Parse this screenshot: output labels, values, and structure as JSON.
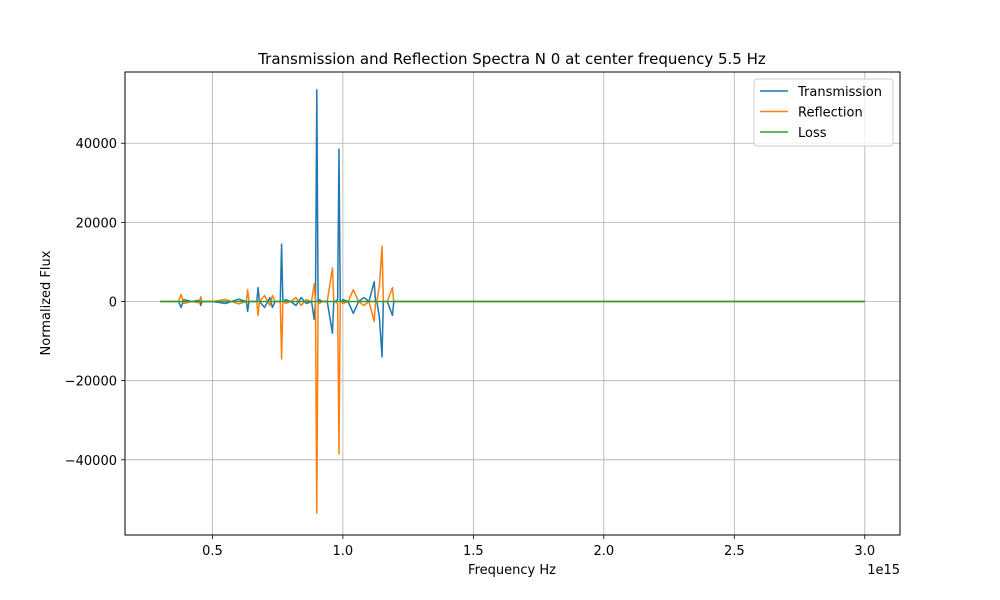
{
  "chart_data": {
    "type": "line",
    "title": "Transmission and Reflection Spectra N 0 at center frequency 5.5 Hz",
    "xlabel": "Frequency Hz",
    "ylabel": "Normalized Flux",
    "x_offset_label": "1e15",
    "x_scale": 1000000000000000.0,
    "xlim": [
      0.165,
      3.135
    ],
    "ylim": [
      -59000,
      58000
    ],
    "xticks": [
      0.5,
      1.0,
      1.5,
      2.0,
      2.5,
      3.0
    ],
    "xtick_labels": [
      "0.5",
      "1.0",
      "1.5",
      "2.0",
      "2.5",
      "3.0"
    ],
    "yticks": [
      -40000,
      -20000,
      0,
      20000,
      40000
    ],
    "ytick_labels": [
      "−40000",
      "−20000",
      "0",
      "20000",
      "40000"
    ],
    "grid": true,
    "legend_position": "top-right",
    "series": [
      {
        "name": "Transmission",
        "color": "#1f77b4",
        "x": [
          0.3,
          0.34,
          0.37,
          0.38,
          0.39,
          0.42,
          0.45,
          0.455,
          0.46,
          0.5,
          0.55,
          0.6,
          0.63,
          0.635,
          0.64,
          0.67,
          0.675,
          0.68,
          0.7,
          0.72,
          0.73,
          0.74,
          0.76,
          0.765,
          0.77,
          0.775,
          0.78,
          0.8,
          0.82,
          0.84,
          0.86,
          0.88,
          0.89,
          0.895,
          0.9,
          0.905,
          0.91,
          0.92,
          0.94,
          0.96,
          0.965,
          0.97,
          0.98,
          0.985,
          0.99,
          0.995,
          1.0,
          1.02,
          1.04,
          1.06,
          1.08,
          1.1,
          1.12,
          1.125,
          1.13,
          1.14,
          1.15,
          1.155,
          1.16,
          1.17,
          1.19,
          1.195,
          1.2,
          1.21,
          1.22,
          1.25,
          1.3,
          1.37,
          1.45,
          1.55,
          1.6,
          2.0,
          2.5,
          3.0
        ],
        "y": [
          0,
          0,
          0,
          -1500,
          500,
          0,
          300,
          -1000,
          0,
          0,
          -500,
          600,
          0,
          -2500,
          0,
          0,
          3500,
          0,
          -1500,
          1000,
          -1500,
          0,
          0,
          14500,
          0,
          0,
          500,
          0,
          -1000,
          1000,
          -500,
          0,
          -4500,
          0,
          53500,
          0,
          500,
          0,
          0,
          -8000,
          0,
          0,
          500,
          38500,
          0,
          0,
          500,
          0,
          -3000,
          0,
          1000,
          0,
          5000,
          0,
          0,
          -4000,
          -14000,
          0,
          0,
          0,
          -3500,
          0,
          0,
          0,
          0,
          0,
          0,
          0,
          0,
          0,
          0,
          0,
          0,
          0
        ]
      },
      {
        "name": "Reflection",
        "color": "#ff7f0e",
        "x": [
          0.3,
          0.34,
          0.37,
          0.38,
          0.39,
          0.42,
          0.45,
          0.455,
          0.46,
          0.5,
          0.55,
          0.6,
          0.63,
          0.635,
          0.64,
          0.67,
          0.675,
          0.68,
          0.7,
          0.72,
          0.73,
          0.74,
          0.76,
          0.765,
          0.77,
          0.775,
          0.78,
          0.8,
          0.82,
          0.84,
          0.86,
          0.88,
          0.89,
          0.895,
          0.9,
          0.905,
          0.91,
          0.92,
          0.94,
          0.96,
          0.965,
          0.97,
          0.98,
          0.985,
          0.99,
          0.995,
          1.0,
          1.02,
          1.04,
          1.06,
          1.08,
          1.1,
          1.12,
          1.125,
          1.13,
          1.14,
          1.15,
          1.155,
          1.16,
          1.17,
          1.19,
          1.195,
          1.2,
          1.21,
          1.22,
          1.25,
          1.3,
          1.37,
          1.45,
          1.55,
          1.6,
          2.0,
          2.5,
          3.0
        ],
        "y": [
          0,
          0,
          0,
          1800,
          -500,
          0,
          -300,
          1200,
          0,
          0,
          500,
          -600,
          0,
          3000,
          0,
          0,
          -3500,
          0,
          1500,
          -1000,
          1500,
          0,
          0,
          -14500,
          0,
          0,
          -500,
          0,
          1000,
          -1000,
          500,
          0,
          4500,
          0,
          -53500,
          0,
          -500,
          0,
          0,
          8500,
          0,
          0,
          -500,
          -38500,
          0,
          0,
          -500,
          0,
          3000,
          0,
          -1000,
          0,
          -5000,
          0,
          0,
          4000,
          14000,
          0,
          0,
          0,
          3500,
          0,
          0,
          0,
          0,
          0,
          0,
          0,
          0,
          0,
          0,
          0,
          0,
          0
        ]
      },
      {
        "name": "Loss",
        "color": "#2ca02c",
        "x": [
          0.3,
          0.5,
          1.0,
          1.5,
          2.0,
          2.5,
          3.0
        ],
        "y": [
          0,
          0,
          0,
          0,
          0,
          0,
          0
        ]
      }
    ]
  }
}
